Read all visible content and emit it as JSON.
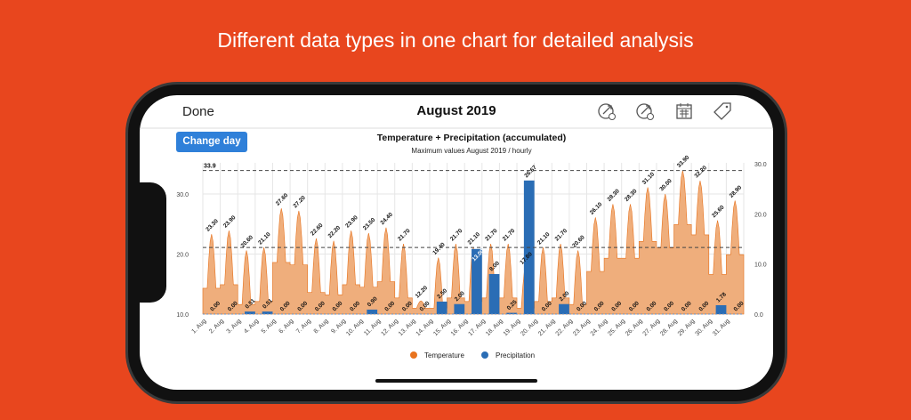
{
  "headline": "Different data types in one chart for detailed analysis",
  "header": {
    "done_label": "Done",
    "title": "August 2019",
    "icons": [
      "compare-1-icon",
      "compare-2-icon",
      "calendar-icon",
      "tag-icon"
    ]
  },
  "change_day_label": "Change day",
  "chart_data": {
    "type": "area+bar",
    "title": "Temperature + Precipitation (accumulated)",
    "subtitle": "Maximum values August 2019 / hourly",
    "categories": [
      "1. Aug",
      "2. Aug",
      "3. Aug",
      "4. Aug",
      "5. Aug",
      "6. Aug",
      "7. Aug",
      "8. Aug",
      "9. Aug",
      "10. Aug",
      "11. Aug",
      "12. Aug",
      "13. Aug",
      "14. Aug",
      "15. Aug",
      "16. Aug",
      "17. Aug",
      "18. Aug",
      "19. Aug",
      "20. Aug",
      "21. Aug",
      "22. Aug",
      "23. Aug",
      "24. Aug",
      "25. Aug",
      "26. Aug",
      "27. Aug",
      "28. Aug",
      "29. Aug",
      "30. Aug",
      "31. Aug"
    ],
    "series": [
      {
        "name": "Temperature",
        "axis": "left",
        "color": "#E8731E",
        "values": [
          23.3,
          23.9,
          20.6,
          21.1,
          27.6,
          27.2,
          22.6,
          22.2,
          23.9,
          23.5,
          24.4,
          21.7,
          12.2,
          19.4,
          21.7,
          21.1,
          21.7,
          21.7,
          17.8,
          21.1,
          21.7,
          20.6,
          26.1,
          28.3,
          28.3,
          31.1,
          30.0,
          33.9,
          32.2,
          25.6,
          28.9
        ]
      },
      {
        "name": "Precipitation",
        "axis": "right",
        "color": "#2A6DB5",
        "values": [
          0,
          0,
          0.51,
          0.51,
          0,
          0,
          0,
          0,
          0,
          0.9,
          0,
          0,
          0,
          2.5,
          2.0,
          13.0,
          8.0,
          0.25,
          26.67,
          0,
          2.0,
          0,
          0,
          0,
          0,
          0,
          0,
          0,
          0,
          1.78,
          0
        ]
      }
    ],
    "left_axis": {
      "ticks": [
        "10.0",
        "20.0",
        "30.0"
      ],
      "range": [
        10,
        35
      ]
    },
    "right_axis": {
      "ticks": [
        "0.0",
        "10.0",
        "20.0",
        "30.0"
      ],
      "range": [
        0,
        30
      ]
    },
    "reference_line": {
      "label": "33.9",
      "value": 33.9
    },
    "legend": [
      {
        "label": "Temperature",
        "color": "#E8731E"
      },
      {
        "label": "Precipitation",
        "color": "#2A6DB5"
      }
    ],
    "legend_position": "bottom",
    "grid": true
  }
}
